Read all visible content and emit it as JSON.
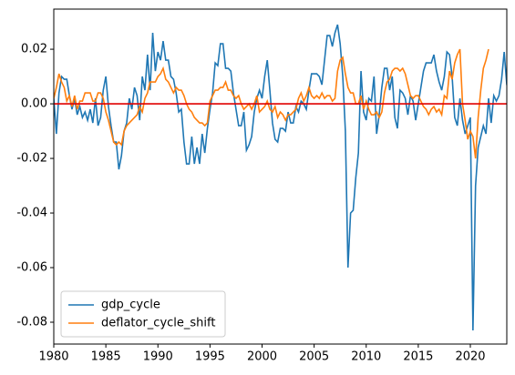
{
  "chart_data": {
    "type": "line",
    "xlim": [
      1980,
      2023.5
    ],
    "ylim": [
      -0.088,
      0.0347
    ],
    "xticks": [
      1980,
      1985,
      1990,
      1995,
      2000,
      2005,
      2010,
      2015,
      2020
    ],
    "yticks": [
      -0.08,
      -0.06,
      -0.04,
      -0.02,
      {
        "value": 0,
        "label": "0.00"
      },
      0.02
    ],
    "hline": {
      "value": 0,
      "color": "#e00000"
    },
    "legend": "lower left",
    "grid": false,
    "series": [
      {
        "name": "gdp_cycle",
        "color": "#1f77b4",
        "x": [
          1980,
          1980.25,
          1980.5,
          1980.75,
          1981,
          1981.25,
          1981.5,
          1981.75,
          1982,
          1982.25,
          1982.5,
          1982.75,
          1983,
          1983.25,
          1983.5,
          1983.75,
          1984,
          1984.25,
          1984.5,
          1984.75,
          1985,
          1985.25,
          1985.5,
          1985.75,
          1986,
          1986.25,
          1986.5,
          1986.75,
          1987,
          1987.25,
          1987.5,
          1987.75,
          1988,
          1988.25,
          1988.5,
          1988.75,
          1989,
          1989.25,
          1989.5,
          1989.75,
          1990,
          1990.25,
          1990.5,
          1990.75,
          1991,
          1991.25,
          1991.5,
          1991.75,
          1992,
          1992.25,
          1992.5,
          1992.75,
          1993,
          1993.25,
          1993.5,
          1993.75,
          1994,
          1994.25,
          1994.5,
          1994.75,
          1995,
          1995.25,
          1995.5,
          1995.75,
          1996,
          1996.25,
          1996.5,
          1996.75,
          1997,
          1997.25,
          1997.5,
          1997.75,
          1998,
          1998.25,
          1998.5,
          1998.75,
          1999,
          1999.25,
          1999.5,
          1999.75,
          2000,
          2000.25,
          2000.5,
          2000.75,
          2001,
          2001.25,
          2001.5,
          2001.75,
          2002,
          2002.25,
          2002.5,
          2002.75,
          2003,
          2003.25,
          2003.5,
          2003.75,
          2004,
          2004.25,
          2004.5,
          2004.75,
          2005,
          2005.25,
          2005.5,
          2005.75,
          2006,
          2006.25,
          2006.5,
          2006.75,
          2007,
          2007.25,
          2007.5,
          2007.75,
          2008,
          2008.25,
          2008.5,
          2008.75,
          2009,
          2009.25,
          2009.5,
          2009.75,
          2010,
          2010.25,
          2010.5,
          2010.75,
          2011,
          2011.25,
          2011.5,
          2011.75,
          2012,
          2012.25,
          2012.5,
          2012.75,
          2013,
          2013.25,
          2013.5,
          2013.75,
          2014,
          2014.25,
          2014.5,
          2014.75,
          2015,
          2015.25,
          2015.5,
          2015.75,
          2016,
          2016.25,
          2016.5,
          2016.75,
          2017,
          2017.25,
          2017.5,
          2017.75,
          2018,
          2018.25,
          2018.5,
          2018.75,
          2019,
          2019.25,
          2019.5,
          2019.75,
          2020,
          2020.25,
          2020.5,
          2020.75,
          2021,
          2021.25,
          2021.5,
          2021.75,
          2022,
          2022.25,
          2022.5,
          2022.75,
          2023,
          2023.25,
          2023.5,
          2023.75
        ],
        "values": [
          0.002,
          -0.011,
          0.004,
          0.01,
          0.009,
          0.009,
          0.003,
          -0.002,
          0.002,
          -0.004,
          -0.001,
          -0.005,
          -0.003,
          -0.006,
          -0.002,
          -0.007,
          0.002,
          -0.008,
          -0.005,
          0.005,
          0.01,
          -0.001,
          -0.008,
          -0.014,
          -0.014,
          -0.024,
          -0.019,
          -0.01,
          -0.007,
          0.002,
          -0.002,
          0.006,
          0.003,
          -0.006,
          0.01,
          0.005,
          0.018,
          0.005,
          0.026,
          0.012,
          0.019,
          0.016,
          0.023,
          0.016,
          0.016,
          0.01,
          0.009,
          0.004,
          -0.003,
          -0.002,
          -0.014,
          -0.022,
          -0.022,
          -0.012,
          -0.022,
          -0.016,
          -0.022,
          -0.011,
          -0.018,
          -0.009,
          -0.002,
          0.004,
          0.015,
          0.014,
          0.022,
          0.022,
          0.013,
          0.013,
          0.012,
          0.004,
          -0.002,
          -0.008,
          -0.008,
          -0.003,
          -0.017,
          -0.015,
          -0.012,
          -0.003,
          0.002,
          0.005,
          0.002,
          0.01,
          0.016,
          0.005,
          -0.007,
          -0.013,
          -0.014,
          -0.009,
          -0.009,
          -0.01,
          -0.003,
          -0.007,
          -0.007,
          -0.001,
          -0.003,
          0.001,
          0.0,
          -0.002,
          0.005,
          0.011,
          0.011,
          0.011,
          0.01,
          0.007,
          0.016,
          0.025,
          0.025,
          0.021,
          0.026,
          0.029,
          0.022,
          0.01,
          -0.01,
          -0.06,
          -0.04,
          -0.039,
          -0.027,
          -0.018,
          0.012,
          -0.003,
          -0.006,
          0.002,
          0.001,
          0.01,
          -0.011,
          -0.004,
          0.006,
          0.013,
          0.013,
          0.005,
          0.01,
          -0.005,
          -0.009,
          0.005,
          0.004,
          0.002,
          -0.004,
          0.003,
          0.001,
          -0.006,
          0.0,
          0.006,
          0.012,
          0.015,
          0.015,
          0.015,
          0.018,
          0.012,
          0.008,
          0.005,
          0.01,
          0.019,
          0.018,
          0.01,
          -0.005,
          -0.008,
          0.002,
          -0.006,
          -0.011,
          -0.008,
          -0.005,
          -0.083,
          -0.03,
          -0.016,
          -0.012,
          -0.008,
          -0.011,
          0.002,
          -0.007,
          0.003,
          0.001,
          0.003,
          0.009,
          0.019,
          0.007,
          0.005
        ]
      },
      {
        "name": "deflator_cycle_shift",
        "color": "#ff7f0e",
        "x": [
          1980,
          1980.25,
          1980.5,
          1980.75,
          1981,
          1981.25,
          1981.5,
          1981.75,
          1982,
          1982.25,
          1982.5,
          1982.75,
          1983,
          1983.25,
          1983.5,
          1983.75,
          1984,
          1984.25,
          1984.5,
          1984.75,
          1985,
          1985.25,
          1985.5,
          1985.75,
          1986,
          1986.25,
          1986.5,
          1986.75,
          1987,
          1987.25,
          1987.5,
          1987.75,
          1988,
          1988.25,
          1988.5,
          1988.75,
          1989,
          1989.25,
          1989.5,
          1989.75,
          1990,
          1990.25,
          1990.5,
          1990.75,
          1991,
          1991.25,
          1991.5,
          1991.75,
          1992,
          1992.25,
          1992.5,
          1992.75,
          1993,
          1993.25,
          1993.5,
          1993.75,
          1994,
          1994.25,
          1994.5,
          1994.75,
          1995,
          1995.25,
          1995.5,
          1995.75,
          1996,
          1996.25,
          1996.5,
          1996.75,
          1997,
          1997.25,
          1997.5,
          1997.75,
          1998,
          1998.25,
          1998.5,
          1998.75,
          1999,
          1999.25,
          1999.5,
          1999.75,
          2000,
          2000.25,
          2000.5,
          2000.75,
          2001,
          2001.25,
          2001.5,
          2001.75,
          2002,
          2002.25,
          2002.5,
          2002.75,
          2003,
          2003.25,
          2003.5,
          2003.75,
          2004,
          2004.25,
          2004.5,
          2004.75,
          2005,
          2005.25,
          2005.5,
          2005.75,
          2006,
          2006.25,
          2006.5,
          2006.75,
          2007,
          2007.25,
          2007.5,
          2007.75,
          2008,
          2008.25,
          2008.5,
          2008.75,
          2009,
          2009.25,
          2009.5,
          2009.75,
          2010,
          2010.25,
          2010.5,
          2010.75,
          2011,
          2011.25,
          2011.5,
          2011.75,
          2012,
          2012.25,
          2012.5,
          2012.75,
          2013,
          2013.25,
          2013.5,
          2013.75,
          2014,
          2014.25,
          2014.5,
          2014.75,
          2015,
          2015.25,
          2015.5,
          2015.75,
          2016,
          2016.25,
          2016.5,
          2016.75,
          2017,
          2017.25,
          2017.5,
          2017.75,
          2018,
          2018.25,
          2018.5,
          2018.75,
          2019,
          2019.25,
          2019.5,
          2019.75,
          2020,
          2020.25,
          2020.5,
          2020.75,
          2021,
          2021.25,
          2021.5,
          2021.75
        ],
        "values": [
          0.002,
          0.006,
          0.011,
          0.008,
          0.006,
          0.001,
          0.003,
          -0.001,
          0.003,
          -0.002,
          0.001,
          0.001,
          0.004,
          0.004,
          0.004,
          0.001,
          0.001,
          0.004,
          0.004,
          0.002,
          -0.003,
          -0.006,
          -0.01,
          -0.014,
          -0.015,
          -0.014,
          -0.015,
          -0.01,
          -0.008,
          -0.007,
          -0.006,
          -0.005,
          -0.004,
          -0.001,
          -0.003,
          0.002,
          0.004,
          0.008,
          0.008,
          0.008,
          0.01,
          0.011,
          0.013,
          0.009,
          0.008,
          0.006,
          0.004,
          0.006,
          0.005,
          0.005,
          0.003,
          0.0,
          -0.002,
          -0.003,
          -0.005,
          -0.006,
          -0.007,
          -0.007,
          -0.008,
          -0.007,
          0.001,
          0.003,
          0.005,
          0.005,
          0.006,
          0.006,
          0.008,
          0.005,
          0.005,
          0.003,
          0.002,
          0.003,
          0.0,
          -0.002,
          -0.001,
          0.0,
          -0.002,
          0.0,
          0.003,
          -0.003,
          -0.002,
          -0.001,
          0.001,
          -0.002,
          -0.003,
          -0.001,
          -0.005,
          -0.003,
          -0.004,
          -0.006,
          -0.004,
          -0.004,
          -0.003,
          -0.002,
          0.002,
          0.004,
          0.001,
          0.003,
          0.006,
          0.003,
          0.002,
          0.003,
          0.002,
          0.004,
          0.002,
          0.003,
          0.003,
          0.001,
          0.002,
          0.012,
          0.016,
          0.017,
          0.011,
          0.006,
          0.004,
          0.004,
          0.0,
          0.0,
          0.003,
          -0.002,
          0.001,
          -0.002,
          -0.004,
          -0.004,
          -0.003,
          -0.005,
          -0.003,
          0.004,
          0.008,
          0.009,
          0.012,
          0.013,
          0.013,
          0.012,
          0.013,
          0.011,
          0.007,
          0.003,
          0.002,
          0.003,
          0.003,
          0.001,
          -0.001,
          -0.002,
          -0.004,
          -0.002,
          -0.001,
          -0.003,
          -0.002,
          -0.004,
          0.003,
          0.002,
          0.012,
          0.009,
          0.015,
          0.018,
          0.02,
          0.0,
          -0.006,
          -0.013,
          -0.01,
          -0.012,
          -0.02,
          -0.005,
          0.005,
          0.013,
          0.016,
          0.02
        ]
      }
    ]
  }
}
